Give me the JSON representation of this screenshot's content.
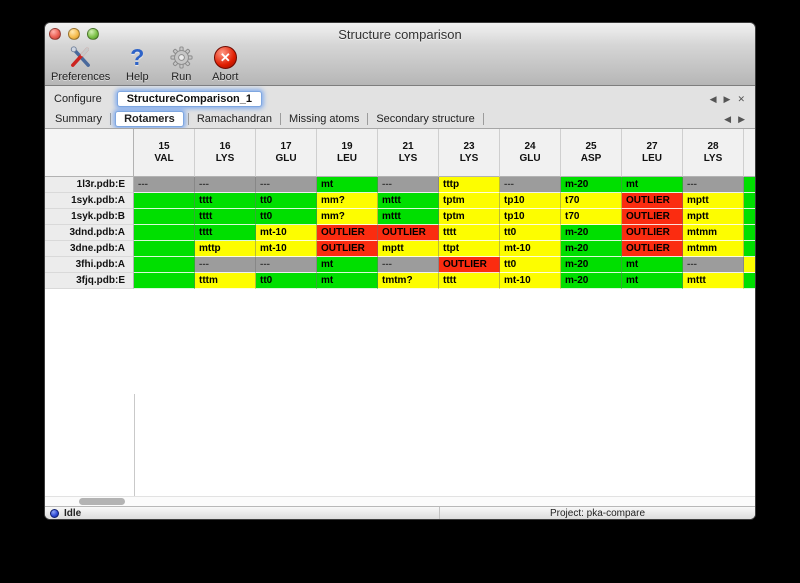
{
  "window": {
    "title": "Structure comparison"
  },
  "toolbar": {
    "items": [
      {
        "label": "Preferences",
        "icon": "tools-icon"
      },
      {
        "label": "Help",
        "icon": "help-icon"
      },
      {
        "label": "Run",
        "icon": "gear-icon"
      },
      {
        "label": "Abort",
        "icon": "abort-icon"
      }
    ]
  },
  "configure": {
    "label": "Configure",
    "tab_name": "StructureComparison_1"
  },
  "nav": {
    "left": "◀",
    "right": "▶",
    "close": "✕"
  },
  "tabs": [
    {
      "label": "Summary",
      "selected": false
    },
    {
      "label": "Rotamers",
      "selected": true
    },
    {
      "label": "Ramachandran",
      "selected": false
    },
    {
      "label": "Missing atoms",
      "selected": false
    },
    {
      "label": "Secondary structure",
      "selected": false
    }
  ],
  "colors": {
    "green": "#00df00",
    "yellow": "#fdfd00",
    "red": "#fb2c10",
    "gray": "#9c9c9c",
    "gray_text": "#3e3e3e",
    "header_bg": "#f1f1f1"
  },
  "table": {
    "columns": [
      {
        "num": "15",
        "res": "VAL"
      },
      {
        "num": "16",
        "res": "LYS"
      },
      {
        "num": "17",
        "res": "GLU"
      },
      {
        "num": "19",
        "res": "LEU"
      },
      {
        "num": "21",
        "res": "LYS"
      },
      {
        "num": "23",
        "res": "LYS"
      },
      {
        "num": "24",
        "res": "GLU"
      },
      {
        "num": "25",
        "res": "ASP"
      },
      {
        "num": "27",
        "res": "LEU"
      },
      {
        "num": "28",
        "res": "LYS"
      }
    ],
    "rows": [
      {
        "label": "1l3r.pdb:E",
        "edge": "green",
        "cells": [
          {
            "t": "---",
            "c": "gray"
          },
          {
            "t": "---",
            "c": "gray"
          },
          {
            "t": "---",
            "c": "gray"
          },
          {
            "t": "mt",
            "c": "green"
          },
          {
            "t": "---",
            "c": "gray"
          },
          {
            "t": "tttp",
            "c": "yellow"
          },
          {
            "t": "---",
            "c": "gray"
          },
          {
            "t": "m-20",
            "c": "green"
          },
          {
            "t": "mt",
            "c": "green"
          },
          {
            "t": "---",
            "c": "gray"
          }
        ]
      },
      {
        "label": "1syk.pdb:A",
        "edge": "green",
        "cells": [
          {
            "t": "t",
            "c": "green",
            "clip": true
          },
          {
            "t": "tttt",
            "c": "green"
          },
          {
            "t": "tt0",
            "c": "green"
          },
          {
            "t": "mm?",
            "c": "yellow"
          },
          {
            "t": "mttt",
            "c": "green"
          },
          {
            "t": "tptm",
            "c": "yellow"
          },
          {
            "t": "tp10",
            "c": "yellow"
          },
          {
            "t": "t70",
            "c": "yellow"
          },
          {
            "t": "OUTLIER",
            "c": "red"
          },
          {
            "t": "mptt",
            "c": "yellow"
          }
        ]
      },
      {
        "label": "1syk.pdb:B",
        "edge": "green",
        "cells": [
          {
            "t": "t",
            "c": "green",
            "clip": true
          },
          {
            "t": "tttt",
            "c": "green"
          },
          {
            "t": "tt0",
            "c": "green"
          },
          {
            "t": "mm?",
            "c": "yellow"
          },
          {
            "t": "mttt",
            "c": "green"
          },
          {
            "t": "tptm",
            "c": "yellow"
          },
          {
            "t": "tp10",
            "c": "yellow"
          },
          {
            "t": "t70",
            "c": "yellow"
          },
          {
            "t": "OUTLIER",
            "c": "red"
          },
          {
            "t": "mptt",
            "c": "yellow"
          }
        ]
      },
      {
        "label": "3dnd.pdb:A",
        "edge": "green",
        "cells": [
          {
            "t": "t",
            "c": "green",
            "clip": true
          },
          {
            "t": "tttt",
            "c": "green"
          },
          {
            "t": "mt-10",
            "c": "yellow"
          },
          {
            "t": "OUTLIER",
            "c": "red"
          },
          {
            "t": "OUTLIER",
            "c": "red"
          },
          {
            "t": "tttt",
            "c": "yellow"
          },
          {
            "t": "tt0",
            "c": "yellow"
          },
          {
            "t": "m-20",
            "c": "green"
          },
          {
            "t": "OUTLIER",
            "c": "red"
          },
          {
            "t": "mtmm",
            "c": "yellow"
          }
        ]
      },
      {
        "label": "3dne.pdb:A",
        "edge": "green",
        "cells": [
          {
            "t": "t",
            "c": "green",
            "clip": true
          },
          {
            "t": "mttp",
            "c": "yellow"
          },
          {
            "t": "mt-10",
            "c": "yellow"
          },
          {
            "t": "OUTLIER",
            "c": "red"
          },
          {
            "t": "mptt",
            "c": "yellow"
          },
          {
            "t": "ttpt",
            "c": "yellow"
          },
          {
            "t": "mt-10",
            "c": "yellow"
          },
          {
            "t": "m-20",
            "c": "green"
          },
          {
            "t": "OUTLIER",
            "c": "red"
          },
          {
            "t": "mtmm",
            "c": "yellow"
          }
        ]
      },
      {
        "label": "3fhi.pdb:A",
        "edge": "yellow",
        "cells": [
          {
            "t": "t",
            "c": "green",
            "clip": true
          },
          {
            "t": "---",
            "c": "gray"
          },
          {
            "t": "---",
            "c": "gray"
          },
          {
            "t": "mt",
            "c": "green"
          },
          {
            "t": "---",
            "c": "gray"
          },
          {
            "t": "OUTLIER",
            "c": "red"
          },
          {
            "t": "tt0",
            "c": "yellow"
          },
          {
            "t": "m-20",
            "c": "green"
          },
          {
            "t": "mt",
            "c": "green"
          },
          {
            "t": "---",
            "c": "gray"
          }
        ]
      },
      {
        "label": "3fjq.pdb:E",
        "edge": "green",
        "cells": [
          {
            "t": "t",
            "c": "green",
            "clip": true
          },
          {
            "t": "tttm",
            "c": "yellow"
          },
          {
            "t": "tt0",
            "c": "green"
          },
          {
            "t": "mt",
            "c": "green"
          },
          {
            "t": "tmtm?",
            "c": "yellow"
          },
          {
            "t": "tttt",
            "c": "yellow"
          },
          {
            "t": "mt-10",
            "c": "yellow"
          },
          {
            "t": "m-20",
            "c": "green"
          },
          {
            "t": "mt",
            "c": "green"
          },
          {
            "t": "mttt",
            "c": "yellow"
          }
        ]
      }
    ]
  },
  "statusbar": {
    "status": "Idle",
    "project": "Project: pka-compare"
  }
}
